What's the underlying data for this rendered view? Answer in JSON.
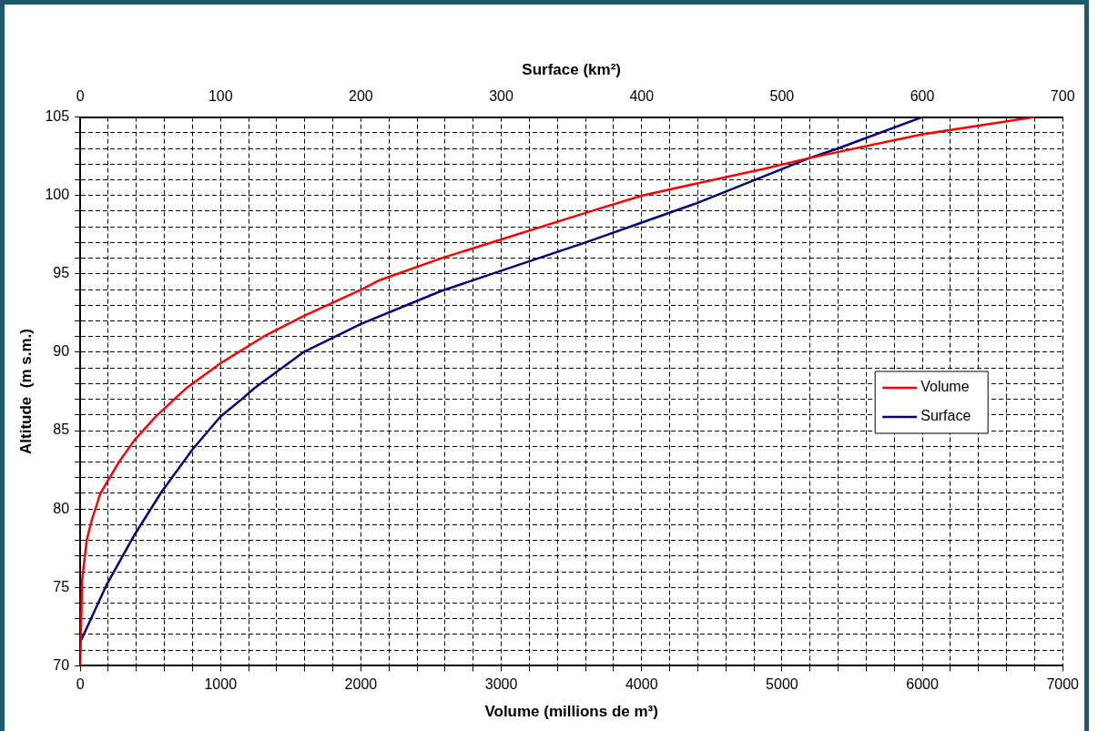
{
  "chart_data": {
    "type": "line",
    "xlabel": "Volume (millions de m³)",
    "x2label": "Surface (km²)",
    "ylabel": "Altitude  (m s.m.)",
    "xlim": [
      0,
      7000
    ],
    "xticks": [
      0,
      {
        "value": 200,
        "label": null
      },
      {
        "value": 400,
        "label": null
      },
      {
        "value": 600,
        "label": null
      },
      {
        "value": 800,
        "label": null
      },
      1000,
      {
        "value": 1200,
        "label": null
      },
      {
        "value": 1400,
        "label": null
      },
      {
        "value": 1600,
        "label": null
      },
      {
        "value": 1800,
        "label": null
      },
      2000,
      {
        "value": 2200,
        "label": null
      },
      {
        "value": 2400,
        "label": null
      },
      {
        "value": 2600,
        "label": null
      },
      {
        "value": 2800,
        "label": null
      },
      3000,
      {
        "value": 3200,
        "label": null
      },
      {
        "value": 3400,
        "label": null
      },
      {
        "value": 3600,
        "label": null
      },
      {
        "value": 3800,
        "label": null
      },
      4000,
      {
        "value": 4200,
        "label": null
      },
      {
        "value": 4400,
        "label": null
      },
      {
        "value": 4600,
        "label": null
      },
      {
        "value": 4800,
        "label": null
      },
      5000,
      {
        "value": 5200,
        "label": null
      },
      {
        "value": 5400,
        "label": null
      },
      {
        "value": 5600,
        "label": null
      },
      {
        "value": 5800,
        "label": null
      },
      6000,
      {
        "value": 6200,
        "label": null
      },
      {
        "value": 6400,
        "label": null
      },
      {
        "value": 6600,
        "label": null
      },
      {
        "value": 6800,
        "label": null
      },
      7000
    ],
    "x2lim": [
      0,
      700
    ],
    "x2ticks": [
      0,
      100,
      200,
      300,
      400,
      500,
      600,
      700
    ],
    "ylim": [
      70,
      105
    ],
    "yticks": [
      70,
      {
        "value": 71,
        "label": null
      },
      {
        "value": 72,
        "label": null
      },
      {
        "value": 73,
        "label": null
      },
      {
        "value": 74,
        "label": null
      },
      75,
      {
        "value": 76,
        "label": null
      },
      {
        "value": 77,
        "label": null
      },
      {
        "value": 78,
        "label": null
      },
      {
        "value": 79,
        "label": null
      },
      80,
      {
        "value": 81,
        "label": null
      },
      {
        "value": 82,
        "label": null
      },
      {
        "value": 83,
        "label": null
      },
      {
        "value": 84,
        "label": null
      },
      85,
      {
        "value": 86,
        "label": null
      },
      {
        "value": 87,
        "label": null
      },
      {
        "value": 88,
        "label": null
      },
      {
        "value": 89,
        "label": null
      },
      90,
      {
        "value": 91,
        "label": null
      },
      {
        "value": 92,
        "label": null
      },
      {
        "value": 93,
        "label": null
      },
      {
        "value": 94,
        "label": null
      },
      95,
      {
        "value": 96,
        "label": null
      },
      {
        "value": 97,
        "label": null
      },
      {
        "value": 98,
        "label": null
      },
      {
        "value": 99,
        "label": null
      },
      100,
      {
        "value": 101,
        "label": null
      },
      {
        "value": 102,
        "label": null
      },
      {
        "value": 103,
        "label": null
      },
      {
        "value": 104,
        "label": null
      },
      105
    ],
    "grid": true,
    "line_style": "solid",
    "marker": "none",
    "legend": "right",
    "series": [
      {
        "name": "Volume",
        "color": "#ff0000",
        "x": [
          0,
          13,
          46,
          79,
          144,
          276,
          387,
          538,
          670,
          755,
          1000,
          1307,
          1589,
          2003,
          2134,
          2574,
          3001,
          3605,
          4005,
          4872,
          5201,
          6002,
          6800
        ],
        "values": [
          70,
          75.4,
          78,
          79.2,
          81,
          83,
          84.4,
          85.9,
          87,
          87.7,
          89.3,
          91,
          92.3,
          94,
          94.6,
          96,
          97.2,
          98.9,
          100,
          101.7,
          102.4,
          103.9,
          105
        ]
      },
      {
        "name": "Surface",
        "color": "#000080",
        "axis": "x2",
        "x": [
          0,
          19,
          39,
          58,
          80,
          100,
          115,
          124,
          159,
          200,
          257,
          300,
          360,
          401,
          439,
          520,
          540,
          600
        ],
        "values": [
          71.5,
          75.2,
          78.4,
          81.1,
          83.8,
          85.9,
          87,
          87.7,
          90,
          91.8,
          93.9,
          95.2,
          97,
          98.3,
          99.5,
          102.4,
          103,
          105
        ]
      }
    ]
  }
}
